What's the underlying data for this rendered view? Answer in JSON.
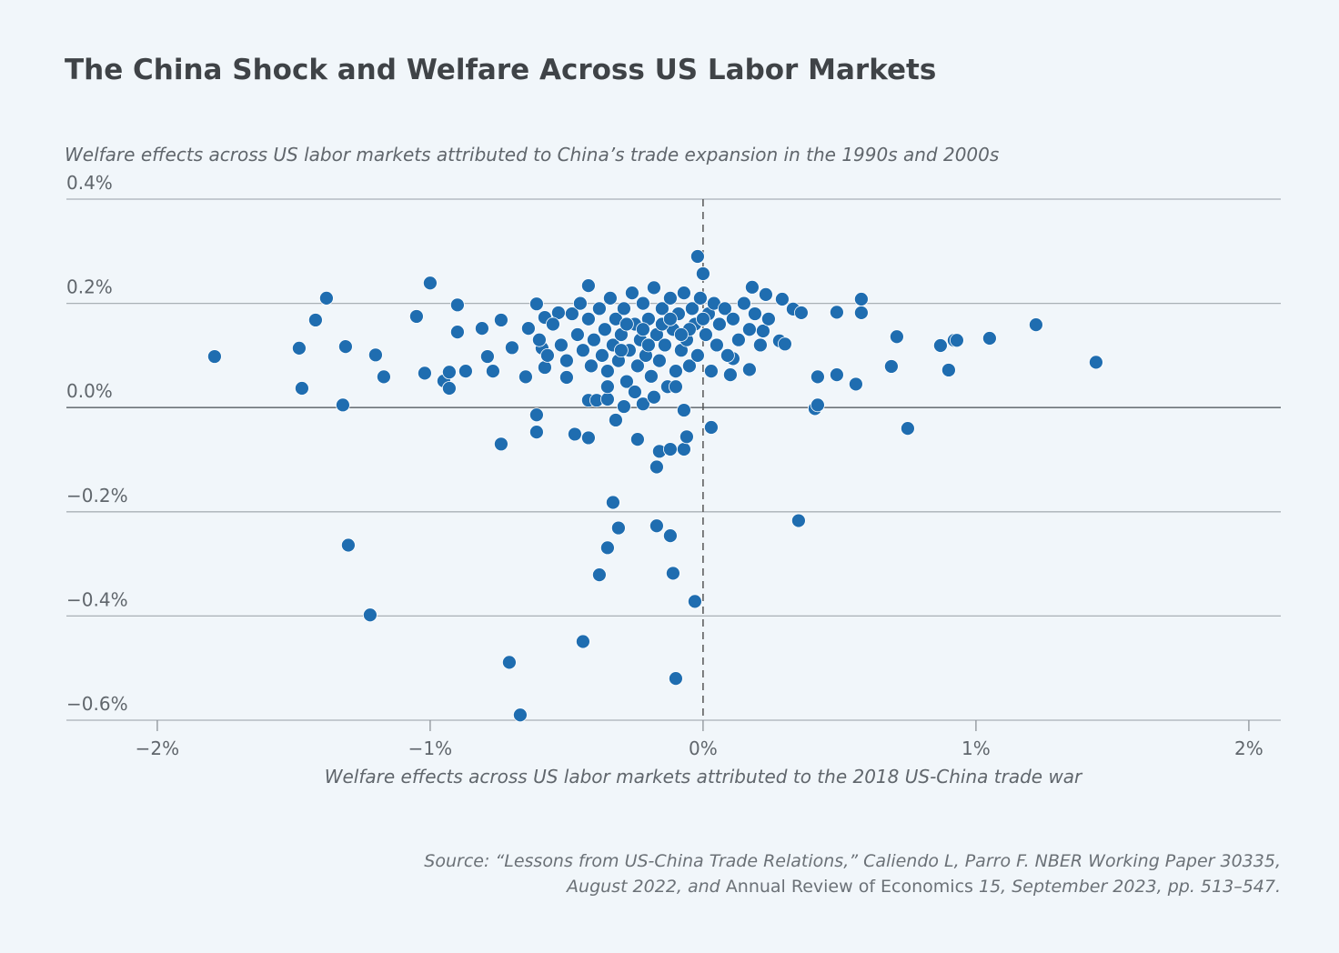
{
  "chart_data": {
    "type": "scatter",
    "title": "The China Shock and Welfare Across US Labor Markets",
    "subtitle": "Welfare effects across US labor markets attributed to China’s trade expansion in the 1990s and 2000s",
    "x_label": "Welfare effects across US labor markets attributed to the 2018 US-China trade war",
    "source": [
      "Source: “Lessons from US-China Trade Relations,” Caliendo L, Parro F. NBER Working Paper 30335,",
      "August 2022, and ",
      "Annual Review of Economics",
      " 15, September 2023, pp. 513–547."
    ],
    "color": "#1f6db0",
    "grid": true,
    "vline": 0,
    "xlim": [
      -2.333,
      2.117
    ],
    "ylim": [
      -0.6,
      0.4
    ],
    "xticks": [
      {
        "value": -2,
        "label": "−2%"
      },
      {
        "value": -1,
        "label": "−1%"
      },
      {
        "value": 0,
        "label": "0%"
      },
      {
        "value": 1,
        "label": "1%"
      },
      {
        "value": 2,
        "label": "2%"
      }
    ],
    "yticks": [
      {
        "value": -0.6,
        "label": "−0.6%"
      },
      {
        "value": -0.4,
        "label": "−0.4%"
      },
      {
        "value": -0.2,
        "label": "−0.2%"
      },
      {
        "value": 0,
        "label": "0.0%"
      },
      {
        "value": 0.2,
        "label": "0.2%"
      },
      {
        "value": 0.4,
        "label": "0.4%"
      }
    ],
    "x": [
      -1.79,
      -1.48,
      -1.47,
      -1.38,
      -1.42,
      -1.31,
      -1.32,
      -1.3,
      -1.22,
      -1.2,
      -1.17,
      -1.05,
      -1.0,
      -1.02,
      -0.95,
      -0.93,
      -0.93,
      -0.9,
      -0.9,
      -0.87,
      -0.81,
      -0.79,
      -0.77,
      -0.74,
      -0.74,
      -0.71,
      -0.67,
      -0.7,
      -0.65,
      -0.64,
      -0.61,
      -0.61,
      -0.61,
      -0.58,
      -0.59,
      -0.58,
      -0.53,
      -0.5,
      -0.47,
      -0.44,
      -0.42,
      -0.42,
      -0.42,
      -0.38,
      -0.39,
      -0.35,
      -0.33,
      -0.31,
      -0.32,
      -0.29,
      -0.35,
      -0.24,
      -0.22,
      -0.17,
      -0.17,
      -0.16,
      -0.12,
      -0.12,
      -0.11,
      -0.1,
      -0.07,
      -0.06,
      -0.07,
      -0.03,
      -0.02,
      0.0,
      0.03,
      0.1,
      0.11,
      0.18,
      0.17,
      0.22,
      0.23,
      0.29,
      0.28,
      0.3,
      0.33,
      0.36,
      0.35,
      0.41,
      0.42,
      0.42,
      0.49,
      0.49,
      0.56,
      0.58,
      0.58,
      0.69,
      0.71,
      0.75,
      0.87,
      0.9,
      0.92,
      0.93,
      1.05,
      1.22,
      1.44,
      -0.55,
      -0.52,
      -0.5,
      -0.48,
      -0.46,
      -0.45,
      -0.44,
      -0.42,
      -0.41,
      -0.4,
      -0.38,
      -0.37,
      -0.36,
      -0.35,
      -0.34,
      -0.33,
      -0.32,
      -0.31,
      -0.3,
      -0.29,
      -0.28,
      -0.27,
      -0.26,
      -0.25,
      -0.24,
      -0.23,
      -0.22,
      -0.21,
      -0.2,
      -0.19,
      -0.18,
      -0.17,
      -0.16,
      -0.15,
      -0.14,
      -0.13,
      -0.12,
      -0.11,
      -0.1,
      -0.09,
      -0.08,
      -0.07,
      -0.06,
      -0.05,
      -0.04,
      -0.03,
      -0.02,
      -0.01,
      0.01,
      0.02,
      0.03,
      0.04,
      0.05,
      0.06,
      0.08,
      0.09,
      0.11,
      0.13,
      0.15,
      0.17,
      0.19,
      0.21,
      0.24,
      -0.6,
      -0.57,
      -0.25,
      -0.18,
      -0.1,
      -0.35,
      -0.15,
      -0.22,
      -0.28,
      -0.05,
      0.0,
      -0.12,
      -0.3,
      -0.2,
      -0.08
    ],
    "values": [
      0.098,
      0.114,
      0.037,
      0.21,
      0.168,
      0.117,
      0.005,
      -0.264,
      -0.398,
      0.101,
      0.059,
      0.175,
      0.239,
      0.066,
      0.051,
      0.068,
      0.037,
      0.197,
      0.145,
      0.07,
      0.152,
      0.098,
      0.07,
      0.168,
      -0.07,
      -0.489,
      -0.59,
      0.115,
      0.059,
      0.152,
      -0.014,
      -0.047,
      0.199,
      0.173,
      0.114,
      0.077,
      0.182,
      0.058,
      -0.051,
      -0.449,
      -0.058,
      0.234,
      0.014,
      -0.321,
      0.014,
      -0.269,
      -0.182,
      -0.231,
      -0.024,
      0.002,
      0.016,
      -0.061,
      0.007,
      -0.114,
      -0.227,
      -0.084,
      -0.246,
      -0.08,
      -0.318,
      -0.52,
      -0.08,
      -0.056,
      -0.005,
      -0.372,
      0.29,
      0.257,
      -0.038,
      0.063,
      0.094,
      0.231,
      0.073,
      0.147,
      0.217,
      0.208,
      0.128,
      0.122,
      0.189,
      0.182,
      -0.217,
      -0.002,
      0.005,
      0.059,
      0.183,
      0.063,
      0.045,
      0.208,
      0.182,
      0.079,
      0.136,
      -0.04,
      0.119,
      0.072,
      0.129,
      0.129,
      0.133,
      0.159,
      0.087,
      0.16,
      0.12,
      0.09,
      0.18,
      0.14,
      0.2,
      0.11,
      0.17,
      0.08,
      0.13,
      0.19,
      0.1,
      0.15,
      0.07,
      0.21,
      0.12,
      0.17,
      0.09,
      0.14,
      0.19,
      0.05,
      0.11,
      0.22,
      0.16,
      0.08,
      0.13,
      0.2,
      0.1,
      0.17,
      0.06,
      0.23,
      0.14,
      0.09,
      0.19,
      0.12,
      0.04,
      0.21,
      0.15,
      0.07,
      0.18,
      0.11,
      0.22,
      0.13,
      0.08,
      0.19,
      0.16,
      0.1,
      0.21,
      0.14,
      0.18,
      0.07,
      0.2,
      0.12,
      0.16,
      0.19,
      0.1,
      0.17,
      0.13,
      0.2,
      0.15,
      0.18,
      0.12,
      0.17,
      0.13,
      0.1,
      0.03,
      0.02,
      0.04,
      0.04,
      0.16,
      0.15,
      0.16,
      0.15,
      0.17,
      0.17,
      0.11,
      0.12,
      0.14
    ]
  }
}
